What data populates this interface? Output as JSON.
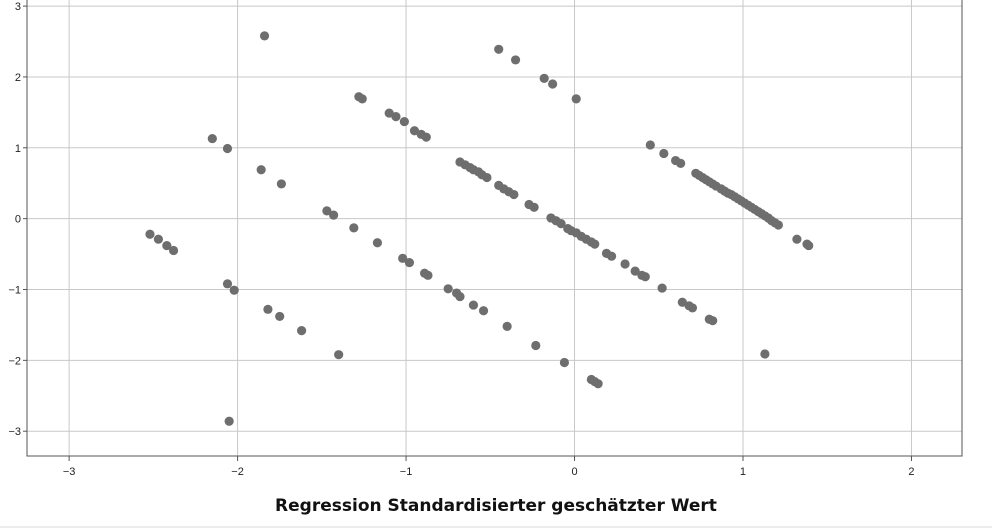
{
  "chart_data": {
    "type": "scatter",
    "title": "",
    "xlabel": "Regression Standardisierter geschätzter Wert",
    "ylabel": "",
    "xlim": [
      -3.25,
      2.3
    ],
    "ylim": [
      -3.35,
      3.1
    ],
    "grid": true,
    "xticks": [
      -3,
      -2,
      -1,
      0,
      1,
      2
    ],
    "yticks": [
      3,
      2,
      1,
      0,
      -1,
      -2,
      -3
    ],
    "x_tick_labels": [
      "−3",
      "−2",
      "−1",
      "0",
      "1",
      "2"
    ],
    "y_tick_labels": [
      "3",
      "2",
      "1",
      "0",
      "−1",
      "−2",
      "−3"
    ],
    "point_color": "#6e6e6e",
    "points": [
      [
        -2.52,
        -0.22
      ],
      [
        -2.47,
        -0.29
      ],
      [
        -2.42,
        -0.38
      ],
      [
        -2.38,
        -0.45
      ],
      [
        -2.15,
        1.13
      ],
      [
        -2.06,
        0.99
      ],
      [
        -2.06,
        -0.92
      ],
      [
        -2.02,
        -1.01
      ],
      [
        -2.05,
        -2.86
      ],
      [
        -1.84,
        2.58
      ],
      [
        -1.86,
        0.69
      ],
      [
        -1.74,
        0.49
      ],
      [
        -1.82,
        -1.28
      ],
      [
        -1.75,
        -1.38
      ],
      [
        -1.62,
        -1.58
      ],
      [
        -1.47,
        0.11
      ],
      [
        -1.43,
        0.05
      ],
      [
        -1.31,
        -0.13
      ],
      [
        -1.17,
        -0.34
      ],
      [
        -1.4,
        -1.92
      ],
      [
        -1.28,
        1.72
      ],
      [
        -1.26,
        1.69
      ],
      [
        -1.1,
        1.49
      ],
      [
        -1.06,
        1.44
      ],
      [
        -1.01,
        1.37
      ],
      [
        -0.95,
        1.24
      ],
      [
        -0.91,
        1.19
      ],
      [
        -0.88,
        1.15
      ],
      [
        -1.02,
        -0.56
      ],
      [
        -0.98,
        -0.62
      ],
      [
        -0.89,
        -0.77
      ],
      [
        -0.87,
        -0.8
      ],
      [
        -0.75,
        -0.99
      ],
      [
        -0.7,
        -1.05
      ],
      [
        -0.68,
        -1.1
      ],
      [
        -0.6,
        -1.22
      ],
      [
        -0.54,
        -1.3
      ],
      [
        -0.4,
        -1.52
      ],
      [
        -0.23,
        -1.79
      ],
      [
        -0.06,
        -2.03
      ],
      [
        0.1,
        -2.27
      ],
      [
        0.12,
        -2.3
      ],
      [
        0.14,
        -2.33
      ],
      [
        -0.45,
        2.39
      ],
      [
        -0.35,
        2.24
      ],
      [
        -0.18,
        1.98
      ],
      [
        -0.13,
        1.9
      ],
      [
        0.01,
        1.69
      ],
      [
        -0.68,
        0.8
      ],
      [
        -0.65,
        0.76
      ],
      [
        -0.62,
        0.72
      ],
      [
        -0.6,
        0.69
      ],
      [
        -0.57,
        0.66
      ],
      [
        -0.55,
        0.62
      ],
      [
        -0.52,
        0.58
      ],
      [
        -0.45,
        0.47
      ],
      [
        -0.42,
        0.42
      ],
      [
        -0.39,
        0.38
      ],
      [
        -0.36,
        0.34
      ],
      [
        -0.27,
        0.2
      ],
      [
        -0.24,
        0.16
      ],
      [
        -0.14,
        0.01
      ],
      [
        -0.11,
        -0.03
      ],
      [
        -0.08,
        -0.07
      ],
      [
        -0.04,
        -0.14
      ],
      [
        -0.02,
        -0.17
      ],
      [
        0.01,
        -0.2
      ],
      [
        0.04,
        -0.25
      ],
      [
        0.07,
        -0.29
      ],
      [
        0.1,
        -0.33
      ],
      [
        0.12,
        -0.36
      ],
      [
        0.19,
        -0.49
      ],
      [
        0.22,
        -0.53
      ],
      [
        0.3,
        -0.64
      ],
      [
        0.36,
        -0.74
      ],
      [
        0.4,
        -0.8
      ],
      [
        0.42,
        -0.82
      ],
      [
        0.52,
        -0.98
      ],
      [
        0.64,
        -1.18
      ],
      [
        0.68,
        -1.23
      ],
      [
        0.7,
        -1.26
      ],
      [
        0.8,
        -1.42
      ],
      [
        0.82,
        -1.44
      ],
      [
        0.45,
        1.04
      ],
      [
        0.53,
        0.92
      ],
      [
        0.6,
        0.82
      ],
      [
        0.63,
        0.78
      ],
      [
        0.72,
        0.64
      ],
      [
        0.74,
        0.61
      ],
      [
        0.76,
        0.58
      ],
      [
        0.78,
        0.55
      ],
      [
        0.8,
        0.52
      ],
      [
        0.82,
        0.49
      ],
      [
        0.84,
        0.46
      ],
      [
        0.87,
        0.42
      ],
      [
        0.89,
        0.39
      ],
      [
        0.91,
        0.36
      ],
      [
        0.93,
        0.34
      ],
      [
        0.95,
        0.31
      ],
      [
        0.97,
        0.28
      ],
      [
        0.99,
        0.25
      ],
      [
        1.01,
        0.22
      ],
      [
        1.03,
        0.19
      ],
      [
        1.05,
        0.16
      ],
      [
        1.07,
        0.13
      ],
      [
        1.09,
        0.1
      ],
      [
        1.11,
        0.07
      ],
      [
        1.13,
        0.04
      ],
      [
        1.15,
        0.01
      ],
      [
        1.17,
        -0.03
      ],
      [
        1.19,
        -0.06
      ],
      [
        1.21,
        -0.09
      ],
      [
        1.32,
        -0.29
      ],
      [
        1.39,
        -0.38
      ],
      [
        1.38,
        -0.36
      ],
      [
        1.13,
        -1.91
      ]
    ]
  }
}
